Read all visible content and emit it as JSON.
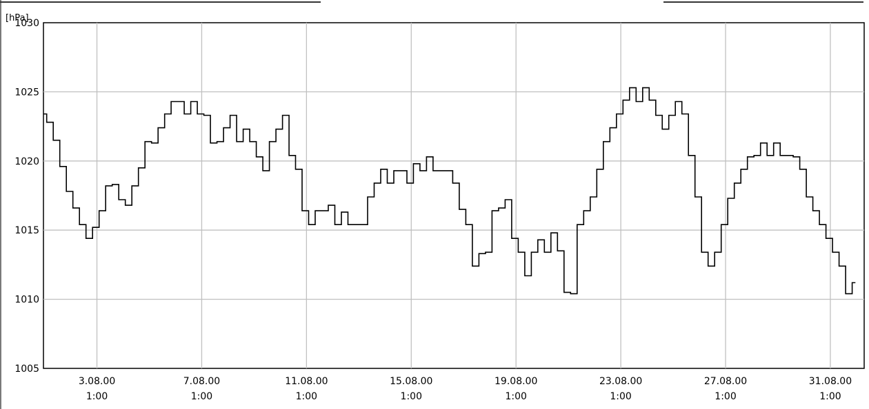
{
  "chart_data": {
    "type": "line",
    "title": "",
    "xlabel": "",
    "ylabel": "[hPa]",
    "ylim": [
      1005,
      1030
    ],
    "yticks": [
      "1030",
      "1025",
      "1020",
      "1015",
      "1010",
      "1005"
    ],
    "xlim": [
      "1.08.00 0:00",
      "1.09.00 8:00"
    ],
    "xticks": [
      {
        "date": "3.08.00",
        "time": "1:00"
      },
      {
        "date": "7.08.00",
        "time": "1:00"
      },
      {
        "date": "11.08.00",
        "time": "1:00"
      },
      {
        "date": "15.08.00",
        "time": "1:00"
      },
      {
        "date": "19.08.00",
        "time": "1:00"
      },
      {
        "date": "23.08.00",
        "time": "1:00"
      },
      {
        "date": "27.08.00",
        "time": "1:00"
      },
      {
        "date": "31.08.00",
        "time": "1:00"
      }
    ],
    "grid": true,
    "series": [
      {
        "color": "#000000",
        "points": [
          [
            "1.08.00 0:00",
            1023.4
          ],
          [
            "1.08.00 6:00",
            1022.8
          ],
          [
            "1.08.00 12:00",
            1021.5
          ],
          [
            "1.08.00 18:00",
            1019.6
          ],
          [
            "2.08.00 0:00",
            1017.8
          ],
          [
            "2.08.00 6:00",
            1016.6
          ],
          [
            "2.08.00 12:00",
            1015.4
          ],
          [
            "2.08.00 18:00",
            1014.4
          ],
          [
            "3.08.00 0:00",
            1015.2
          ],
          [
            "3.08.00 6:00",
            1016.4
          ],
          [
            "3.08.00 12:00",
            1018.2
          ],
          [
            "3.08.00 18:00",
            1018.3
          ],
          [
            "4.08.00 0:00",
            1017.2
          ],
          [
            "4.08.00 6:00",
            1016.8
          ],
          [
            "4.08.00 12:00",
            1018.2
          ],
          [
            "4.08.00 18:00",
            1019.5
          ],
          [
            "5.08.00 0:00",
            1021.4
          ],
          [
            "5.08.00 6:00",
            1021.3
          ],
          [
            "5.08.00 12:00",
            1022.4
          ],
          [
            "5.08.00 18:00",
            1023.4
          ],
          [
            "6.08.00 0:00",
            1024.3
          ],
          [
            "6.08.00 6:00",
            1024.3
          ],
          [
            "6.08.00 12:00",
            1023.4
          ],
          [
            "6.08.00 18:00",
            1024.3
          ],
          [
            "7.08.00 0:00",
            1023.4
          ],
          [
            "7.08.00 6:00",
            1023.3
          ],
          [
            "7.08.00 12:00",
            1021.3
          ],
          [
            "7.08.00 18:00",
            1021.4
          ],
          [
            "8.08.00 0:00",
            1022.4
          ],
          [
            "8.08.00 6:00",
            1023.3
          ],
          [
            "8.08.00 12:00",
            1021.4
          ],
          [
            "8.08.00 18:00",
            1022.3
          ],
          [
            "9.08.00 0:00",
            1021.4
          ],
          [
            "9.08.00 6:00",
            1020.3
          ],
          [
            "9.08.00 12:00",
            1019.3
          ],
          [
            "9.08.00 18:00",
            1021.4
          ],
          [
            "10.08.00 0:00",
            1022.3
          ],
          [
            "10.08.00 6:00",
            1023.3
          ],
          [
            "10.08.00 12:00",
            1020.4
          ],
          [
            "10.08.00 18:00",
            1019.4
          ],
          [
            "11.08.00 0:00",
            1016.4
          ],
          [
            "11.08.00 6:00",
            1015.4
          ],
          [
            "11.08.00 12:00",
            1016.4
          ],
          [
            "11.08.00 18:00",
            1016.4
          ],
          [
            "12.08.00 0:00",
            1016.8
          ],
          [
            "12.08.00 6:00",
            1015.4
          ],
          [
            "12.08.00 12:00",
            1016.3
          ],
          [
            "12.08.00 18:00",
            1015.4
          ],
          [
            "13.08.00 0:00",
            1015.4
          ],
          [
            "13.08.00 6:00",
            1015.4
          ],
          [
            "13.08.00 12:00",
            1017.4
          ],
          [
            "13.08.00 18:00",
            1018.4
          ],
          [
            "14.08.00 0:00",
            1019.4
          ],
          [
            "14.08.00 6:00",
            1018.4
          ],
          [
            "14.08.00 12:00",
            1019.3
          ],
          [
            "14.08.00 18:00",
            1019.3
          ],
          [
            "15.08.00 0:00",
            1018.4
          ],
          [
            "15.08.00 6:00",
            1019.8
          ],
          [
            "15.08.00 12:00",
            1019.3
          ],
          [
            "15.08.00 18:00",
            1020.3
          ],
          [
            "16.08.00 0:00",
            1019.3
          ],
          [
            "16.08.00 6:00",
            1019.3
          ],
          [
            "16.08.00 12:00",
            1019.3
          ],
          [
            "16.08.00 18:00",
            1018.4
          ],
          [
            "17.08.00 0:00",
            1016.5
          ],
          [
            "17.08.00 6:00",
            1015.4
          ],
          [
            "17.08.00 12:00",
            1012.4
          ],
          [
            "17.08.00 18:00",
            1013.3
          ],
          [
            "18.08.00 0:00",
            1013.4
          ],
          [
            "18.08.00 6:00",
            1016.4
          ],
          [
            "18.08.00 12:00",
            1016.6
          ],
          [
            "18.08.00 18:00",
            1017.2
          ],
          [
            "19.08.00 0:00",
            1014.4
          ],
          [
            "19.08.00 6:00",
            1013.4
          ],
          [
            "19.08.00 12:00",
            1011.7
          ],
          [
            "19.08.00 18:00",
            1013.4
          ],
          [
            "20.08.00 0:00",
            1014.3
          ],
          [
            "20.08.00 6:00",
            1013.4
          ],
          [
            "20.08.00 12:00",
            1014.8
          ],
          [
            "20.08.00 18:00",
            1013.5
          ],
          [
            "21.08.00 0:00",
            1010.5
          ],
          [
            "21.08.00 6:00",
            1010.4
          ],
          [
            "21.08.00 12:00",
            1015.4
          ],
          [
            "21.08.00 18:00",
            1016.4
          ],
          [
            "22.08.00 0:00",
            1017.4
          ],
          [
            "22.08.00 6:00",
            1019.4
          ],
          [
            "22.08.00 12:00",
            1021.4
          ],
          [
            "22.08.00 18:00",
            1022.4
          ],
          [
            "23.08.00 0:00",
            1023.4
          ],
          [
            "23.08.00 6:00",
            1024.4
          ],
          [
            "23.08.00 12:00",
            1025.3
          ],
          [
            "23.08.00 18:00",
            1024.3
          ],
          [
            "24.08.00 0:00",
            1025.3
          ],
          [
            "24.08.00 6:00",
            1024.4
          ],
          [
            "24.08.00 12:00",
            1023.3
          ],
          [
            "24.08.00 18:00",
            1022.3
          ],
          [
            "25.08.00 0:00",
            1023.3
          ],
          [
            "25.08.00 6:00",
            1024.3
          ],
          [
            "25.08.00 12:00",
            1023.4
          ],
          [
            "25.08.00 18:00",
            1020.4
          ],
          [
            "26.08.00 0:00",
            1017.4
          ],
          [
            "26.08.00 6:00",
            1013.4
          ],
          [
            "26.08.00 12:00",
            1012.4
          ],
          [
            "26.08.00 18:00",
            1013.4
          ],
          [
            "27.08.00 0:00",
            1015.4
          ],
          [
            "27.08.00 6:00",
            1017.3
          ],
          [
            "27.08.00 12:00",
            1018.4
          ],
          [
            "27.08.00 18:00",
            1019.4
          ],
          [
            "28.08.00 0:00",
            1020.3
          ],
          [
            "28.08.00 6:00",
            1020.4
          ],
          [
            "28.08.00 12:00",
            1021.3
          ],
          [
            "28.08.00 18:00",
            1020.4
          ],
          [
            "29.08.00 0:00",
            1021.3
          ],
          [
            "29.08.00 6:00",
            1020.4
          ],
          [
            "29.08.00 12:00",
            1020.4
          ],
          [
            "29.08.00 18:00",
            1020.3
          ],
          [
            "30.08.00 0:00",
            1019.4
          ],
          [
            "30.08.00 6:00",
            1017.4
          ],
          [
            "30.08.00 12:00",
            1016.4
          ],
          [
            "30.08.00 18:00",
            1015.4
          ],
          [
            "31.08.00 0:00",
            1014.4
          ],
          [
            "31.08.00 6:00",
            1013.4
          ],
          [
            "31.08.00 12:00",
            1012.4
          ],
          [
            "31.08.00 18:00",
            1010.4
          ],
          [
            "1.09.00 0:00",
            1011.2
          ]
        ]
      }
    ]
  }
}
